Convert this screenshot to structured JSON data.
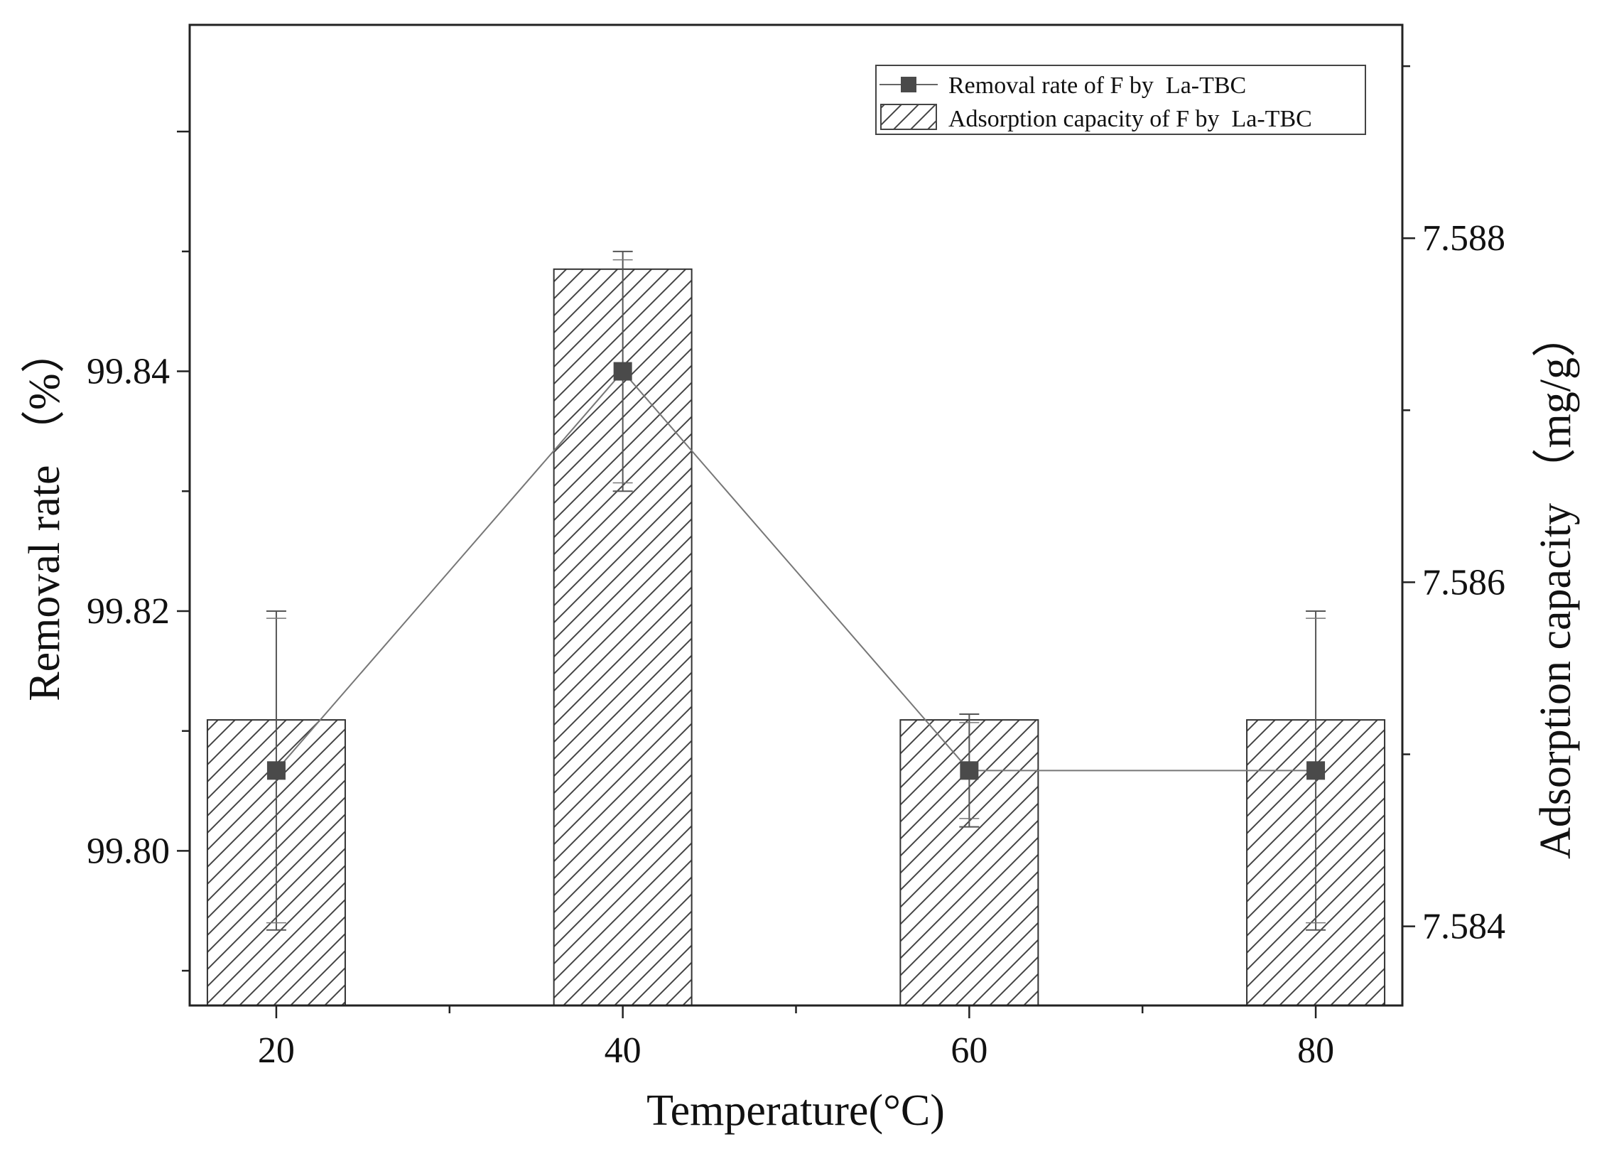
{
  "chart_data": {
    "type": "bar",
    "categories": [
      "20",
      "40",
      "60",
      "80"
    ],
    "x": [
      20,
      40,
      60,
      80
    ],
    "xlabel": "Temperature(°C)",
    "xlim": [
      15,
      85
    ],
    "x_ticks": [
      "20",
      "40",
      "60",
      "80"
    ],
    "ylabel": "Removal rate （%）",
    "ylim": [
      99.7871,
      99.8689
    ],
    "y_ticks": [
      "99.80",
      "99.82",
      "99.84"
    ],
    "y2label": "Adsorption capacity （mg/g）",
    "y2lim": [
      7.58354,
      7.58924
    ],
    "y2_ticks": [
      "7.584",
      "7.586",
      "7.588"
    ],
    "grid": false,
    "legend_position": "top-right",
    "series": [
      {
        "name": "Removal rate of F by  La-TBC",
        "type": "line",
        "marker": "square",
        "axis": "left",
        "values": [
          99.8067,
          99.84,
          99.8067,
          99.8067
        ],
        "error": [
          0.0133,
          0.01,
          0.0047,
          0.0133
        ],
        "error_inner": [
          0.0127,
          0.0093,
          0.004,
          0.0127
        ]
      },
      {
        "name": "Adsorption capacity of F by  La-TBC",
        "type": "bar",
        "pattern": "hatch",
        "axis": "right",
        "values": [
          7.5852,
          7.58782,
          7.5852,
          7.5852
        ]
      }
    ]
  }
}
